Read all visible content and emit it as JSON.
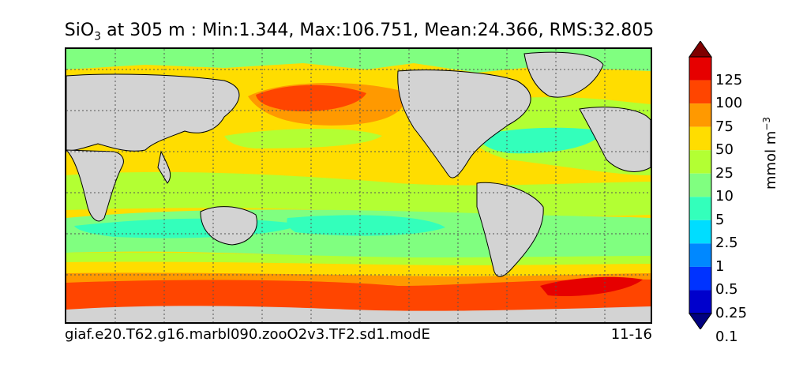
{
  "title": {
    "species": "SiO",
    "species_sub": "3",
    "rest": " at 305 m : Min:1.344, Max:106.751, Mean:24.366, RMS:32.805"
  },
  "footer": {
    "case_name": "giaf.e20.T62.g16.marbl090.zooO2v3.TF2.sd1.modE",
    "years": "11-16"
  },
  "colorbar": {
    "units_base": "mmol m",
    "units_exp": "−3",
    "levels": [
      "125",
      "100",
      "75",
      "50",
      "25",
      "10",
      "5",
      "2.5",
      "1",
      "0.5",
      "0.25",
      "0.1"
    ],
    "colors": [
      "#7f0000",
      "#e60000",
      "#ff4500",
      "#ff9900",
      "#ffdd00",
      "#b3ff33",
      "#80ff80",
      "#33ffbb",
      "#00ddff",
      "#0088ff",
      "#0033ff",
      "#0000cc",
      "#000080"
    ]
  },
  "map_colors": {
    "land": "#d3d3d3",
    "grid": "#555555"
  }
}
